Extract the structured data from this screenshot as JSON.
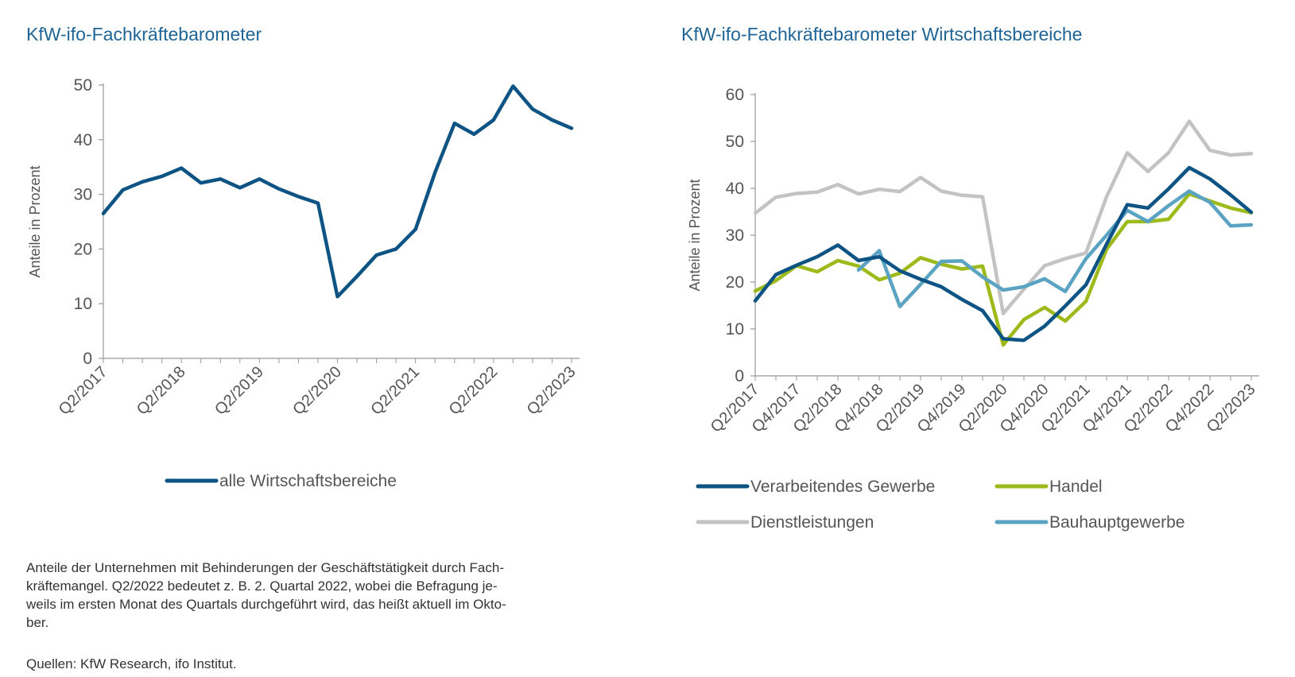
{
  "chart_data": [
    {
      "type": "line",
      "title": "KfW-ifo-Fachkräftebarometer",
      "ylabel": "Anteile in Prozent",
      "ylim": [
        0,
        50
      ],
      "yticks": [
        "0",
        "10",
        "20",
        "30",
        "40",
        "50"
      ],
      "xticks": [
        "Q2/2017",
        "Q2/2018",
        "Q2/2019",
        "Q2/2020",
        "Q2/2021",
        "Q2/2022",
        "Q2/2023"
      ],
      "grid": false,
      "legend_position": "bottom",
      "x": [
        "Q2/2017",
        "Q3/2017",
        "Q4/2017",
        "Q1/2018",
        "Q2/2018",
        "Q3/2018",
        "Q4/2018",
        "Q1/2019",
        "Q2/2019",
        "Q3/2019",
        "Q4/2019",
        "Q1/2020",
        "Q2/2020",
        "Q3/2020",
        "Q4/2020",
        "Q1/2021",
        "Q2/2021",
        "Q3/2021",
        "Q4/2021",
        "Q1/2022",
        "Q2/2022",
        "Q3/2022",
        "Q4/2022",
        "Q1/2023",
        "Q2/2023"
      ],
      "series": [
        {
          "name": "alle Wirtschaftsbereiche",
          "color": "#0d5384",
          "values": [
            26.5,
            30.8,
            32.3,
            33.3,
            34.8,
            32.1,
            32.8,
            31.2,
            32.8,
            31.0,
            29.6,
            28.4,
            11.3,
            15.0,
            18.9,
            20.0,
            23.6,
            34.0,
            43.0,
            41.0,
            43.6,
            49.8,
            45.6,
            43.6,
            42.1
          ]
        }
      ]
    },
    {
      "type": "line",
      "title": "KfW-ifo-Fachkräftebarometer Wirtschaftsbereiche",
      "ylabel": "Anteile in Prozent",
      "ylim": [
        0,
        60
      ],
      "yticks": [
        "0",
        "10",
        "20",
        "30",
        "40",
        "50",
        "60"
      ],
      "xticks": [
        "Q2/2017",
        "Q4/2017",
        "Q2/2018",
        "Q4/2018",
        "Q2/2019",
        "Q4/2019",
        "Q2/2020",
        "Q4/2020",
        "Q2/2021",
        "Q4/2021",
        "Q2/2022",
        "Q4/2022",
        "Q2/2023"
      ],
      "grid": false,
      "legend_position": "bottom",
      "x": [
        "Q2/2017",
        "Q3/2017",
        "Q4/2017",
        "Q1/2018",
        "Q2/2018",
        "Q3/2018",
        "Q4/2018",
        "Q1/2019",
        "Q2/2019",
        "Q3/2019",
        "Q4/2019",
        "Q1/2020",
        "Q2/2020",
        "Q3/2020",
        "Q4/2020",
        "Q1/2021",
        "Q2/2021",
        "Q3/2021",
        "Q4/2021",
        "Q1/2022",
        "Q2/2022",
        "Q3/2022",
        "Q4/2022",
        "Q1/2023",
        "Q2/2023"
      ],
      "series": [
        {
          "name": "Dienstleistungen",
          "color": "#c3c3c3",
          "values": [
            34.7,
            38.1,
            38.9,
            39.2,
            40.8,
            38.8,
            39.8,
            39.3,
            42.3,
            39.4,
            38.5,
            38.2,
            13.3,
            18.5,
            23.5,
            25.0,
            26.2,
            38.2,
            47.6,
            43.6,
            47.6,
            54.3,
            48.1,
            47.1,
            47.4
          ]
        },
        {
          "name": "Handel",
          "color": "#9dba1b",
          "values": [
            18.1,
            20.3,
            23.5,
            22.2,
            24.6,
            23.4,
            20.5,
            21.9,
            25.2,
            23.8,
            22.8,
            23.4,
            6.6,
            12.0,
            14.6,
            11.7,
            15.9,
            27.0,
            32.9,
            32.9,
            33.4,
            38.8,
            37.3,
            35.8,
            34.8
          ]
        },
        {
          "name": "Bauhauptgewerbe",
          "color": "#5aa3c2",
          "values": [
            null,
            null,
            null,
            null,
            null,
            22.6,
            26.7,
            14.8,
            19.5,
            24.4,
            24.5,
            21.1,
            18.3,
            19.0,
            20.7,
            18.0,
            25.0,
            30.0,
            35.3,
            32.9,
            36.3,
            39.4,
            37.0,
            32.0,
            32.2
          ]
        },
        {
          "name": "Verarbeitendes Gewerbe",
          "color": "#0d5384",
          "values": [
            16.0,
            21.6,
            23.6,
            25.4,
            27.9,
            24.6,
            25.4,
            22.4,
            20.6,
            19.0,
            16.3,
            13.9,
            7.9,
            7.6,
            10.6,
            14.9,
            19.4,
            28.1,
            36.5,
            35.8,
            39.9,
            44.4,
            42.0,
            38.6,
            34.9
          ]
        }
      ]
    }
  ],
  "footnote": "Anteile der Unternehmen mit Behinderungen der Geschäftstätigkeit durch Fach-kräftemangel. Q2/2022 bedeutet z. B. 2. Quartal 2022, wobei die Befragung je-weils im ersten Monat des Quartals durchgeführt wird, das heißt aktuell im Okto-ber.",
  "footnote_lines": [
    "Anteile der Unternehmen mit Behinderungen der Geschäftstätigkeit durch Fach-",
    "kräftemangel. Q2/2022 bedeutet z. B. 2. Quartal 2022, wobei die Befragung je-",
    "weils im ersten Monat des Quartals durchgeführt wird, das heißt aktuell im Okto-",
    "ber."
  ],
  "sources": "Quellen: KfW Research, ifo Institut."
}
